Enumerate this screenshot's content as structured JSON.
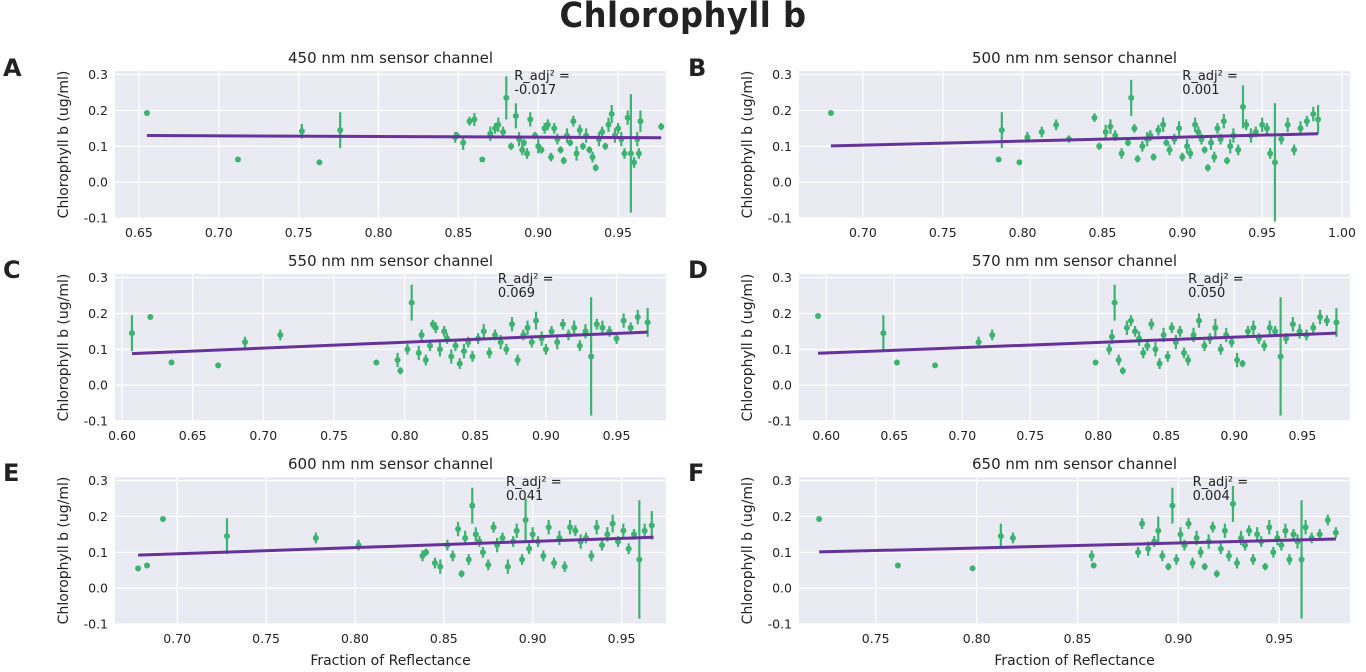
{
  "figure_title": "Chlorophyll b",
  "colors": {
    "background": "#eaeaf2",
    "grid": "#ffffff",
    "points": "#3cb371",
    "fit_line": "#663399"
  },
  "chart_data": [
    {
      "type": "scatter",
      "panel": "A",
      "title": "450 nm nm sensor channel",
      "xlabel": "",
      "ylabel": "Chlorophyll b (ug/ml)",
      "xlim": [
        0.635,
        0.98
      ],
      "ylim": [
        -0.1,
        0.31
      ],
      "xticks": [
        "0.65",
        "0.70",
        "0.75",
        "0.80",
        "0.85",
        "0.90",
        "0.95"
      ],
      "yticks": [
        "-0.1",
        "0.0",
        "0.1",
        "0.2",
        "0.3"
      ],
      "annotation": [
        "R_adj² =",
        "-0.017"
      ],
      "annotation_at": [
        0.885,
        0.285
      ],
      "fit": {
        "x": [
          0.655,
          0.977
        ],
        "y": [
          0.13,
          0.124
        ]
      },
      "x": [
        0.655,
        0.712,
        0.752,
        0.763,
        0.776,
        0.848,
        0.849,
        0.853,
        0.857,
        0.86,
        0.865,
        0.87,
        0.873,
        0.875,
        0.878,
        0.88,
        0.883,
        0.886,
        0.888,
        0.89,
        0.891,
        0.893,
        0.895,
        0.898,
        0.9,
        0.902,
        0.904,
        0.906,
        0.908,
        0.91,
        0.912,
        0.914,
        0.916,
        0.918,
        0.92,
        0.922,
        0.924,
        0.926,
        0.928,
        0.93,
        0.932,
        0.934,
        0.936,
        0.938,
        0.94,
        0.942,
        0.944,
        0.946,
        0.948,
        0.95,
        0.952,
        0.954,
        0.956,
        0.958,
        0.96,
        0.962,
        0.963,
        0.964,
        0.977
      ],
      "y": [
        0.193,
        0.063,
        0.142,
        0.055,
        0.145,
        0.125,
        0.13,
        0.11,
        0.17,
        0.175,
        0.063,
        0.135,
        0.15,
        0.16,
        0.14,
        0.235,
        0.1,
        0.185,
        0.12,
        0.09,
        0.11,
        0.08,
        0.175,
        0.13,
        0.1,
        0.09,
        0.15,
        0.16,
        0.07,
        0.15,
        0.12,
        0.09,
        0.06,
        0.13,
        0.11,
        0.17,
        0.08,
        0.145,
        0.1,
        0.13,
        0.09,
        0.07,
        0.04,
        0.12,
        0.14,
        0.1,
        0.16,
        0.19,
        0.13,
        0.15,
        0.12,
        0.08,
        0.18,
        0.08,
        0.055,
        0.12,
        0.08,
        0.17,
        0.155
      ],
      "err": [
        0.005,
        0.005,
        0.02,
        0.005,
        0.05,
        0.015,
        0.01,
        0.02,
        0.012,
        0.018,
        0.005,
        0.02,
        0.015,
        0.02,
        0.015,
        0.06,
        0.01,
        0.035,
        0.02,
        0.015,
        0.01,
        0.015,
        0.02,
        0.01,
        0.02,
        0.01,
        0.015,
        0.015,
        0.012,
        0.015,
        0.015,
        0.01,
        0.01,
        0.02,
        0.01,
        0.015,
        0.02,
        0.015,
        0.01,
        0.02,
        0.01,
        0.015,
        0.01,
        0.02,
        0.015,
        0.01,
        0.02,
        0.025,
        0.02,
        0.015,
        0.02,
        0.015,
        0.02,
        0.165,
        0.015,
        0.02,
        0.015,
        0.03,
        0.01
      ]
    },
    {
      "type": "scatter",
      "panel": "B",
      "title": "500 nm nm sensor channel",
      "xlabel": "",
      "ylabel": "Chlorophyll b (ug/ml)",
      "xlim": [
        0.66,
        1.005
      ],
      "ylim": [
        -0.1,
        0.31
      ],
      "xticks": [
        "0.70",
        "0.75",
        "0.80",
        "0.85",
        "0.90",
        "0.95",
        "1.00"
      ],
      "yticks": [
        "-0.1",
        "0.0",
        "0.1",
        "0.2",
        "0.3"
      ],
      "annotation": [
        "R_adj² =",
        "0.001"
      ],
      "annotation_at": [
        0.9,
        0.285
      ],
      "fit": {
        "x": [
          0.68,
          0.985
        ],
        "y": [
          0.101,
          0.135
        ]
      },
      "x": [
        0.68,
        0.785,
        0.787,
        0.798,
        0.803,
        0.812,
        0.821,
        0.829,
        0.845,
        0.848,
        0.852,
        0.855,
        0.858,
        0.862,
        0.866,
        0.868,
        0.87,
        0.872,
        0.875,
        0.878,
        0.88,
        0.882,
        0.885,
        0.888,
        0.89,
        0.892,
        0.895,
        0.898,
        0.9,
        0.903,
        0.905,
        0.908,
        0.91,
        0.912,
        0.914,
        0.916,
        0.918,
        0.92,
        0.922,
        0.924,
        0.926,
        0.928,
        0.93,
        0.932,
        0.935,
        0.938,
        0.94,
        0.943,
        0.946,
        0.95,
        0.953,
        0.955,
        0.958,
        0.962,
        0.966,
        0.97,
        0.974,
        0.978,
        0.982,
        0.985
      ],
      "y": [
        0.193,
        0.063,
        0.145,
        0.055,
        0.125,
        0.14,
        0.16,
        0.12,
        0.18,
        0.1,
        0.14,
        0.155,
        0.13,
        0.08,
        0.11,
        0.235,
        0.15,
        0.065,
        0.1,
        0.12,
        0.13,
        0.07,
        0.145,
        0.16,
        0.11,
        0.09,
        0.12,
        0.15,
        0.07,
        0.1,
        0.08,
        0.16,
        0.14,
        0.12,
        0.09,
        0.04,
        0.11,
        0.07,
        0.15,
        0.12,
        0.17,
        0.06,
        0.1,
        0.13,
        0.09,
        0.21,
        0.16,
        0.13,
        0.14,
        0.16,
        0.15,
        0.08,
        0.055,
        0.12,
        0.16,
        0.09,
        0.15,
        0.17,
        0.19,
        0.175
      ],
      "err": [
        0.005,
        0.005,
        0.05,
        0.005,
        0.015,
        0.015,
        0.015,
        0.01,
        0.012,
        0.01,
        0.02,
        0.02,
        0.015,
        0.015,
        0.01,
        0.05,
        0.012,
        0.01,
        0.015,
        0.02,
        0.015,
        0.01,
        0.015,
        0.02,
        0.01,
        0.015,
        0.015,
        0.02,
        0.012,
        0.02,
        0.015,
        0.02,
        0.015,
        0.015,
        0.01,
        0.01,
        0.02,
        0.015,
        0.015,
        0.015,
        0.02,
        0.01,
        0.02,
        0.02,
        0.015,
        0.06,
        0.015,
        0.02,
        0.015,
        0.02,
        0.015,
        0.015,
        0.165,
        0.015,
        0.02,
        0.015,
        0.02,
        0.015,
        0.02,
        0.04
      ]
    },
    {
      "type": "scatter",
      "panel": "C",
      "title": "550 nm nm sensor channel",
      "xlabel": "",
      "ylabel": "Chlorophyll b (ug/ml)",
      "xlim": [
        0.595,
        0.985
      ],
      "ylim": [
        -0.1,
        0.31
      ],
      "xticks": [
        "0.60",
        "0.65",
        "0.70",
        "0.75",
        "0.80",
        "0.85",
        "0.90",
        "0.95"
      ],
      "yticks": [
        "-0.1",
        "0.0",
        "0.1",
        "0.2",
        "0.3"
      ],
      "annotation": [
        "R_adj² =",
        "0.069"
      ],
      "annotation_at": [
        0.866,
        0.285
      ],
      "fit": {
        "x": [
          0.607,
          0.972
        ],
        "y": [
          0.088,
          0.148
        ]
      },
      "x": [
        0.607,
        0.62,
        0.635,
        0.668,
        0.687,
        0.712,
        0.78,
        0.795,
        0.797,
        0.802,
        0.805,
        0.81,
        0.812,
        0.815,
        0.818,
        0.82,
        0.822,
        0.825,
        0.828,
        0.83,
        0.833,
        0.836,
        0.839,
        0.842,
        0.845,
        0.848,
        0.852,
        0.856,
        0.86,
        0.864,
        0.868,
        0.872,
        0.876,
        0.88,
        0.884,
        0.887,
        0.89,
        0.893,
        0.897,
        0.9,
        0.904,
        0.908,
        0.912,
        0.916,
        0.92,
        0.924,
        0.928,
        0.932,
        0.936,
        0.94,
        0.945,
        0.95,
        0.955,
        0.96,
        0.965,
        0.972
      ],
      "y": [
        0.145,
        0.19,
        0.063,
        0.055,
        0.12,
        0.14,
        0.063,
        0.07,
        0.04,
        0.1,
        0.23,
        0.09,
        0.14,
        0.07,
        0.11,
        0.17,
        0.16,
        0.1,
        0.15,
        0.13,
        0.08,
        0.11,
        0.06,
        0.095,
        0.12,
        0.08,
        0.13,
        0.15,
        0.09,
        0.14,
        0.12,
        0.1,
        0.17,
        0.07,
        0.14,
        0.16,
        0.12,
        0.18,
        0.13,
        0.1,
        0.15,
        0.12,
        0.17,
        0.14,
        0.16,
        0.11,
        0.15,
        0.08,
        0.17,
        0.16,
        0.15,
        0.13,
        0.18,
        0.16,
        0.19,
        0.175
      ],
      "err": [
        0.05,
        0.005,
        0.005,
        0.005,
        0.015,
        0.015,
        0.005,
        0.02,
        0.01,
        0.015,
        0.05,
        0.02,
        0.015,
        0.015,
        0.015,
        0.012,
        0.015,
        0.02,
        0.015,
        0.015,
        0.02,
        0.015,
        0.015,
        0.02,
        0.015,
        0.015,
        0.015,
        0.02,
        0.015,
        0.015,
        0.02,
        0.015,
        0.02,
        0.015,
        0.015,
        0.02,
        0.015,
        0.025,
        0.02,
        0.015,
        0.015,
        0.02,
        0.015,
        0.015,
        0.02,
        0.015,
        0.02,
        0.165,
        0.015,
        0.02,
        0.015,
        0.015,
        0.02,
        0.015,
        0.02,
        0.04
      ]
    },
    {
      "type": "scatter",
      "panel": "D",
      "title": "570 nm nm sensor channel",
      "xlabel": "",
      "ylabel": "Chlorophyll b (ug/ml)",
      "xlim": [
        0.58,
        0.985
      ],
      "ylim": [
        -0.1,
        0.31
      ],
      "xticks": [
        "0.60",
        "0.65",
        "0.70",
        "0.75",
        "0.80",
        "0.85",
        "0.90",
        "0.95"
      ],
      "yticks": [
        "-0.1",
        "0.0",
        "0.1",
        "0.2",
        "0.3"
      ],
      "annotation": [
        "R_adj² =",
        "0.050"
      ],
      "annotation_at": [
        0.866,
        0.285
      ],
      "fit": {
        "x": [
          0.594,
          0.975
        ],
        "y": [
          0.089,
          0.145
        ]
      },
      "x": [
        0.594,
        0.642,
        0.652,
        0.68,
        0.712,
        0.722,
        0.798,
        0.808,
        0.81,
        0.812,
        0.815,
        0.818,
        0.821,
        0.824,
        0.827,
        0.83,
        0.833,
        0.836,
        0.839,
        0.842,
        0.845,
        0.848,
        0.851,
        0.854,
        0.857,
        0.86,
        0.863,
        0.866,
        0.87,
        0.874,
        0.878,
        0.882,
        0.886,
        0.89,
        0.894,
        0.898,
        0.902,
        0.906,
        0.91,
        0.914,
        0.918,
        0.922,
        0.926,
        0.93,
        0.934,
        0.938,
        0.943,
        0.948,
        0.953,
        0.958,
        0.963,
        0.968,
        0.975
      ],
      "y": [
        0.193,
        0.145,
        0.063,
        0.055,
        0.12,
        0.14,
        0.063,
        0.1,
        0.135,
        0.23,
        0.07,
        0.04,
        0.16,
        0.18,
        0.15,
        0.13,
        0.09,
        0.11,
        0.17,
        0.1,
        0.06,
        0.14,
        0.08,
        0.16,
        0.12,
        0.15,
        0.09,
        0.07,
        0.14,
        0.18,
        0.11,
        0.13,
        0.16,
        0.1,
        0.14,
        0.12,
        0.07,
        0.06,
        0.15,
        0.16,
        0.13,
        0.11,
        0.16,
        0.15,
        0.08,
        0.13,
        0.17,
        0.15,
        0.14,
        0.16,
        0.19,
        0.18,
        0.175
      ],
      "err": [
        0.005,
        0.05,
        0.005,
        0.005,
        0.015,
        0.015,
        0.005,
        0.015,
        0.02,
        0.05,
        0.015,
        0.01,
        0.02,
        0.015,
        0.015,
        0.02,
        0.015,
        0.015,
        0.015,
        0.02,
        0.015,
        0.02,
        0.015,
        0.015,
        0.02,
        0.015,
        0.015,
        0.015,
        0.02,
        0.02,
        0.015,
        0.015,
        0.025,
        0.015,
        0.02,
        0.015,
        0.02,
        0.01,
        0.015,
        0.02,
        0.015,
        0.015,
        0.02,
        0.015,
        0.165,
        0.015,
        0.02,
        0.02,
        0.015,
        0.015,
        0.02,
        0.015,
        0.04
      ]
    },
    {
      "type": "scatter",
      "panel": "E",
      "title": "600 nm nm sensor channel",
      "xlabel": "Fraction of Reflectance",
      "ylabel": "Chlorophyll b (ug/ml)",
      "xlim": [
        0.665,
        0.975
      ],
      "ylim": [
        -0.1,
        0.31
      ],
      "xticks": [
        "0.70",
        "0.75",
        "0.80",
        "0.85",
        "0.90",
        "0.95"
      ],
      "yticks": [
        "-0.1",
        "0.0",
        "0.1",
        "0.2",
        "0.3"
      ],
      "annotation": [
        "R_adj² =",
        "0.041"
      ],
      "annotation_at": [
        0.885,
        0.285
      ],
      "fit": {
        "x": [
          0.678,
          0.968
        ],
        "y": [
          0.092,
          0.142
        ]
      },
      "x": [
        0.678,
        0.683,
        0.692,
        0.728,
        0.778,
        0.802,
        0.838,
        0.84,
        0.845,
        0.848,
        0.852,
        0.855,
        0.858,
        0.86,
        0.862,
        0.864,
        0.866,
        0.868,
        0.87,
        0.872,
        0.875,
        0.878,
        0.88,
        0.883,
        0.886,
        0.889,
        0.891,
        0.894,
        0.896,
        0.898,
        0.9,
        0.903,
        0.906,
        0.909,
        0.912,
        0.915,
        0.918,
        0.921,
        0.924,
        0.927,
        0.93,
        0.933,
        0.936,
        0.939,
        0.942,
        0.945,
        0.948,
        0.951,
        0.954,
        0.957,
        0.96,
        0.963,
        0.967
      ],
      "y": [
        0.055,
        0.063,
        0.193,
        0.145,
        0.14,
        0.12,
        0.09,
        0.1,
        0.07,
        0.06,
        0.12,
        0.09,
        0.165,
        0.04,
        0.14,
        0.08,
        0.23,
        0.15,
        0.13,
        0.1,
        0.065,
        0.17,
        0.12,
        0.14,
        0.06,
        0.13,
        0.16,
        0.08,
        0.19,
        0.11,
        0.15,
        0.13,
        0.09,
        0.17,
        0.07,
        0.14,
        0.06,
        0.17,
        0.16,
        0.13,
        0.14,
        0.09,
        0.17,
        0.12,
        0.15,
        0.18,
        0.13,
        0.16,
        0.11,
        0.15,
        0.08,
        0.16,
        0.175
      ],
      "err": [
        0.005,
        0.005,
        0.005,
        0.05,
        0.015,
        0.015,
        0.015,
        0.01,
        0.015,
        0.02,
        0.015,
        0.015,
        0.02,
        0.01,
        0.02,
        0.015,
        0.05,
        0.02,
        0.015,
        0.015,
        0.015,
        0.015,
        0.02,
        0.015,
        0.02,
        0.015,
        0.02,
        0.015,
        0.06,
        0.015,
        0.02,
        0.015,
        0.015,
        0.02,
        0.015,
        0.02,
        0.015,
        0.02,
        0.015,
        0.02,
        0.015,
        0.015,
        0.02,
        0.015,
        0.02,
        0.025,
        0.015,
        0.02,
        0.015,
        0.015,
        0.165,
        0.02,
        0.04
      ]
    },
    {
      "type": "scatter",
      "panel": "F",
      "title": "650 nm nm sensor channel",
      "xlabel": "Fraction of Reflectance",
      "ylabel": "Chlorophyll b (ug/ml)",
      "xlim": [
        0.712,
        0.985
      ],
      "ylim": [
        -0.1,
        0.31
      ],
      "xticks": [
        "0.75",
        "0.80",
        "0.85",
        "0.90",
        "0.95"
      ],
      "yticks": [
        "-0.1",
        "0.0",
        "0.1",
        "0.2",
        "0.3"
      ],
      "annotation": [
        "R_adj² =",
        "0.004"
      ],
      "annotation_at": [
        0.907,
        0.285
      ],
      "fit": {
        "x": [
          0.722,
          0.978
        ],
        "y": [
          0.101,
          0.137
        ]
      },
      "x": [
        0.722,
        0.761,
        0.798,
        0.812,
        0.818,
        0.857,
        0.858,
        0.88,
        0.882,
        0.885,
        0.888,
        0.89,
        0.892,
        0.895,
        0.897,
        0.899,
        0.901,
        0.903,
        0.905,
        0.907,
        0.909,
        0.911,
        0.913,
        0.915,
        0.917,
        0.919,
        0.921,
        0.923,
        0.925,
        0.927,
        0.929,
        0.931,
        0.933,
        0.935,
        0.937,
        0.939,
        0.941,
        0.943,
        0.945,
        0.947,
        0.949,
        0.951,
        0.953,
        0.955,
        0.957,
        0.959,
        0.961,
        0.963,
        0.966,
        0.97,
        0.974,
        0.978
      ],
      "y": [
        0.193,
        0.063,
        0.055,
        0.145,
        0.14,
        0.09,
        0.063,
        0.1,
        0.18,
        0.11,
        0.13,
        0.16,
        0.09,
        0.06,
        0.23,
        0.08,
        0.15,
        0.12,
        0.18,
        0.07,
        0.14,
        0.1,
        0.06,
        0.13,
        0.17,
        0.04,
        0.11,
        0.16,
        0.09,
        0.235,
        0.07,
        0.14,
        0.12,
        0.16,
        0.08,
        0.15,
        0.13,
        0.06,
        0.17,
        0.1,
        0.14,
        0.12,
        0.16,
        0.08,
        0.15,
        0.13,
        0.08,
        0.17,
        0.14,
        0.15,
        0.19,
        0.155
      ],
      "err": [
        0.005,
        0.005,
        0.005,
        0.035,
        0.015,
        0.015,
        0.005,
        0.015,
        0.015,
        0.02,
        0.015,
        0.04,
        0.015,
        0.01,
        0.05,
        0.015,
        0.02,
        0.015,
        0.015,
        0.015,
        0.02,
        0.015,
        0.01,
        0.02,
        0.015,
        0.01,
        0.015,
        0.02,
        0.015,
        0.05,
        0.015,
        0.02,
        0.015,
        0.015,
        0.015,
        0.02,
        0.015,
        0.01,
        0.02,
        0.015,
        0.02,
        0.015,
        0.02,
        0.015,
        0.015,
        0.02,
        0.165,
        0.02,
        0.015,
        0.015,
        0.015,
        0.015
      ]
    }
  ]
}
